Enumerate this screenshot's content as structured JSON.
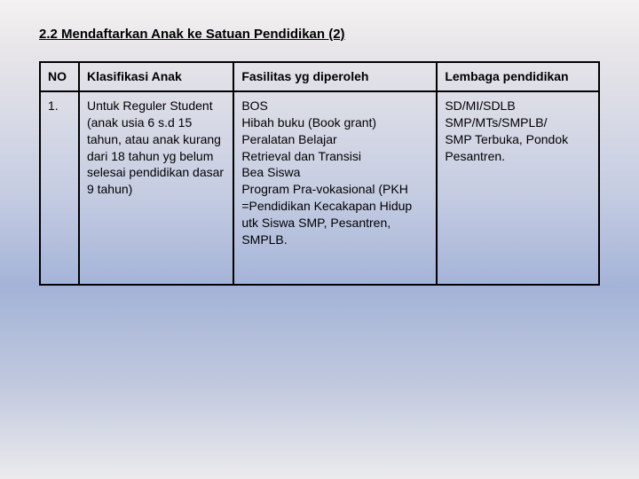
{
  "title": "2.2 Mendaftarkan Anak ke Satuan Pendidikan  (2)",
  "headers": {
    "no": "NO",
    "klasifikasi": "Klasifikasi Anak",
    "fasilitas": "Fasilitas yg diperoleh",
    "lembaga": "Lembaga pendidikan"
  },
  "row1": {
    "no": "1.",
    "klasifikasi": "Untuk Reguler Student (anak usia 6 s.d 15 tahun, atau anak kurang dari 18 tahun yg belum selesai pendidikan dasar 9 tahun)",
    "fasilitas": "BOS\nHibah buku (Book grant)\nPeralatan Belajar\nRetrieval dan Transisi\nBea Siswa\nProgram Pra-vokasional (PKH =Pendidikan Kecakapan Hidup utk Siswa SMP, Pesantren, SMPLB.",
    "lembaga": "SD/MI/SDLB\nSMP/MTs/SMPLB/\nSMP Terbuka, Pondok Pesantren."
  }
}
